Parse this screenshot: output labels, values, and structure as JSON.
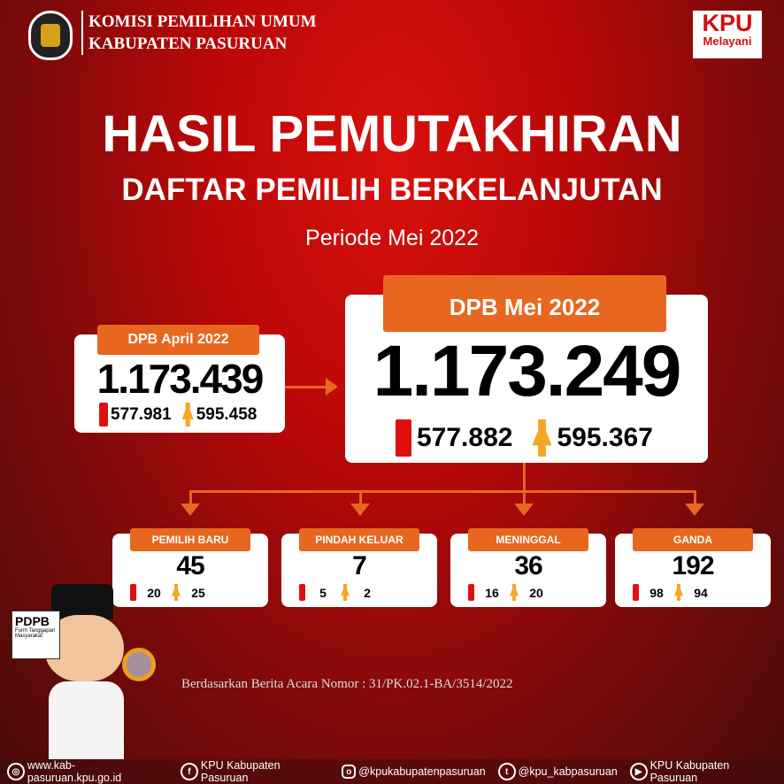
{
  "header": {
    "org_line1": "KOMISI PEMILIHAN UMUM",
    "org_line2": "KABUPATEN PASURUAN",
    "logo_text": "KOMISI PEMILIHAN UMUM",
    "badge_line1": "KPU",
    "badge_line2": "Melayani"
  },
  "title": {
    "main": "HASIL PEMUTAKHIRAN",
    "sub": "DAFTAR PEMILIH BERKELANJUTAN",
    "period": "Periode Mei 2022"
  },
  "previous": {
    "label": "DPB April 2022",
    "total": "1.173.439",
    "male": "577.981",
    "female": "595.458"
  },
  "current": {
    "label": "DPB Mei 2022",
    "total": "1.173.249",
    "male": "577.882",
    "female": "595.367"
  },
  "changes": [
    {
      "label": "PEMILIH BARU",
      "total": "45",
      "male": "20",
      "female": "25"
    },
    {
      "label": "PINDAH KELUAR",
      "total": "7",
      "male": "5",
      "female": "2"
    },
    {
      "label": "MENINGGAL",
      "total": "36",
      "male": "16",
      "female": "20"
    },
    {
      "label": "GANDA",
      "total": "192",
      "male": "98",
      "female": "94"
    }
  ],
  "mascot": {
    "sign_title": "PDPB",
    "sign_text": "Form Tanggapan Masyarakat"
  },
  "note": "Berdasarkan Berita Acara Nomor : 31/PK.02.1-BA/3514/2022",
  "footer": {
    "website": "www.kab-pasuruan.kpu.go.id",
    "facebook": "KPU Kabupaten Pasuruan",
    "instagram": "@kpukabupatenpasuruan",
    "twitter": "@kpu_kabpasuruan",
    "youtube": "KPU Kabupaten Pasuruan"
  },
  "colors": {
    "accent": "#e8671f",
    "male": "#e01010",
    "female": "#f5a623",
    "background": "#b80808"
  }
}
